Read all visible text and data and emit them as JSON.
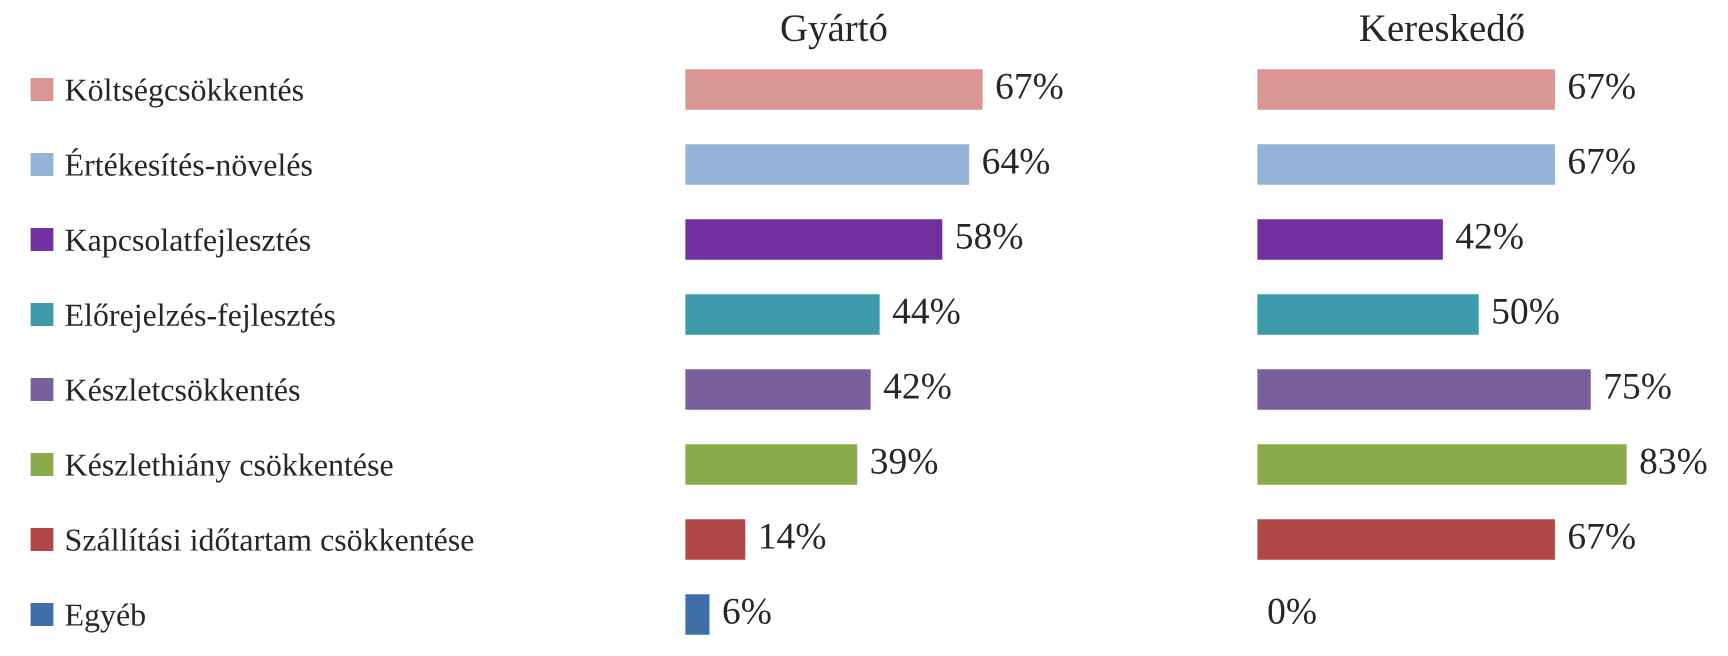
{
  "chart_data": [
    {
      "type": "bar",
      "orientation": "horizontal",
      "title": "Gyártó",
      "categories": [
        "Költségcsökkentés",
        "Értékesítés-növelés",
        "Kapcsolatfejlesztés",
        "Előrejelzés-fejlesztés",
        "Készletcsökkentés",
        "Készlethiány csökkentése",
        "Szállítási időtartam csökkentése",
        "Egyéb"
      ],
      "values": [
        67,
        64,
        58,
        44,
        42,
        39,
        14,
        6
      ],
      "value_labels": [
        "67%",
        "64%",
        "58%",
        "44%",
        "42%",
        "39%",
        "14%",
        "6%"
      ],
      "colors": [
        "#d99694",
        "#95b3d7",
        "#7030a0",
        "#3d9aab",
        "#7b5e9c",
        "#8aab4a",
        "#b04845",
        "#3f6fa8"
      ],
      "tick_labels": "y"
    },
    {
      "type": "bar",
      "orientation": "horizontal",
      "title": "Kereskedő",
      "categories": [
        null,
        null,
        null,
        null,
        null,
        null,
        null,
        null
      ],
      "values": [
        67,
        67,
        42,
        50,
        75,
        83,
        67,
        0
      ],
      "value_labels": [
        "67%",
        "67%",
        "42%",
        "50%",
        "75%",
        "83%",
        "67%",
        "0%"
      ],
      "colors": [
        "#d99694",
        "#95b3d7",
        "#7030a0",
        "#3d9aab",
        "#7b5e9c",
        "#8aab4a",
        "#b04845",
        null
      ],
      "tick_labels": false
    }
  ]
}
